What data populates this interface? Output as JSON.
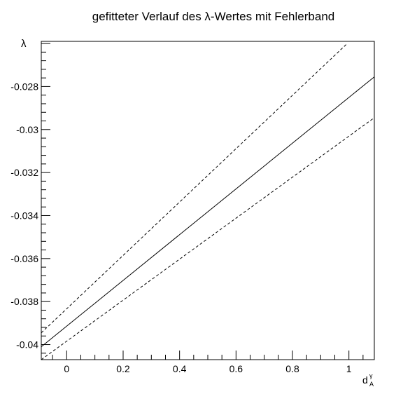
{
  "chart_data": {
    "type": "line",
    "title": "gefitteter Verlauf des λ-Wertes mit Fehlerband",
    "xlabel": {
      "base": "d",
      "superscript": "γ",
      "subscript": "A"
    },
    "ylabel": "λ",
    "xlim": [
      -0.09,
      1.09
    ],
    "ylim": [
      -0.0407,
      -0.0259
    ],
    "x_ticks": [
      0,
      0.2,
      0.4,
      0.6,
      0.8,
      1
    ],
    "x_tick_labels": [
      "0",
      "0.2",
      "0.4",
      "0.6",
      "0.8",
      "1"
    ],
    "y_ticks": [
      -0.028,
      -0.03,
      -0.032,
      -0.034,
      -0.036,
      -0.038,
      -0.04
    ],
    "y_tick_labels": [
      "-0.028",
      "-0.03",
      "-0.032",
      "-0.034",
      "-0.036",
      "-0.038",
      "-0.04"
    ],
    "grid": false,
    "legend": null,
    "series": [
      {
        "style": "solid",
        "x": [
          -0.09,
          1.09
        ],
        "y": [
          -0.0401,
          -0.02755
        ]
      },
      {
        "style": "dashed",
        "x": [
          -0.09,
          0.99
        ],
        "y": [
          -0.03945,
          -0.02605
        ]
      },
      {
        "style": "dashed",
        "x": [
          -0.09,
          1.09
        ],
        "y": [
          -0.0407,
          -0.02945
        ]
      }
    ]
  }
}
